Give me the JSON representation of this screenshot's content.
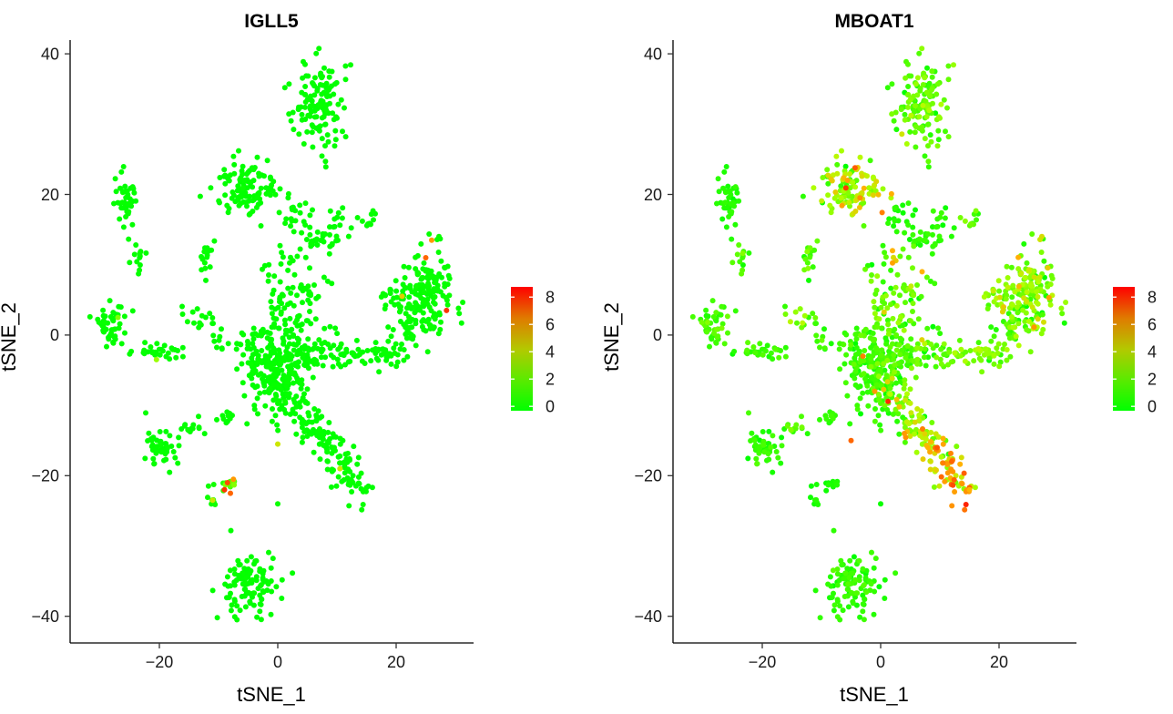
{
  "chart_data": [
    {
      "type": "scatter",
      "title": "IGLL5",
      "xlabel": "tSNE_1",
      "ylabel": "tSNE_2",
      "xlim": [
        -35,
        33
      ],
      "ylim": [
        -44,
        42
      ],
      "x_ticks": [
        -20,
        0,
        20
      ],
      "y_ticks": [
        -40,
        -20,
        0,
        20,
        40
      ],
      "x_tick_labels": [
        "−20",
        "0",
        "20"
      ],
      "y_tick_labels": [
        "−40",
        "−20",
        "0",
        "20",
        "40"
      ],
      "color_scale": {
        "low": "#00ff00",
        "high": "#ff0000",
        "min": 0,
        "max": 8.5
      },
      "legend": {
        "position": "right",
        "ticks": [
          8,
          6,
          4,
          2,
          0
        ]
      },
      "clusters": [
        {
          "cx": 6.5,
          "cy": 33,
          "sx": 2.2,
          "sy": 3.0,
          "n": 130,
          "expr": 0.05
        },
        {
          "cx": -5,
          "cy": 21,
          "sx": 2.8,
          "sy": 2.2,
          "n": 110,
          "expr": 0.05
        },
        {
          "cx": 3,
          "cy": 17,
          "sx": 1.3,
          "sy": 1.3,
          "n": 20,
          "expr": 0.05
        },
        {
          "cx": -25.5,
          "cy": 19,
          "sx": 1.0,
          "sy": 1.8,
          "n": 40,
          "expr": 0.05
        },
        {
          "cx": -23.5,
          "cy": 11,
          "sx": 0.8,
          "sy": 1.0,
          "n": 12,
          "expr": 0.05
        },
        {
          "cx": -28.5,
          "cy": 1.5,
          "sx": 1.4,
          "sy": 2.0,
          "n": 45,
          "expr": 0.05
        },
        {
          "cx": -19.5,
          "cy": -2.5,
          "sx": 2.0,
          "sy": 0.6,
          "n": 30,
          "expr": 0.05
        },
        {
          "cx": -12,
          "cy": 11,
          "sx": 1.0,
          "sy": 1.0,
          "n": 15,
          "expr": 0.05
        },
        {
          "cx": -13,
          "cy": 2.5,
          "sx": 1.3,
          "sy": 1.3,
          "n": 15,
          "expr": 0.05
        },
        {
          "cx": -10,
          "cy": -0.5,
          "sx": 0.7,
          "sy": 1.5,
          "n": 8,
          "expr": 0.05
        },
        {
          "cx": -20,
          "cy": -16,
          "sx": 1.5,
          "sy": 1.4,
          "n": 45,
          "expr": 0.05
        },
        {
          "cx": -14,
          "cy": -13,
          "sx": 1.0,
          "sy": 0.6,
          "n": 12,
          "expr": 0.05
        },
        {
          "cx": -9,
          "cy": -11.5,
          "sx": 1.2,
          "sy": 0.6,
          "n": 10,
          "expr": 0.05
        },
        {
          "cx": -11,
          "cy": -23.5,
          "sx": 0.5,
          "sy": 1.2,
          "n": 8,
          "expr": 0.3
        },
        {
          "cx": -8,
          "cy": -21.5,
          "sx": 0.6,
          "sy": 0.8,
          "n": 14,
          "expr": 1.5
        },
        {
          "cx": -5,
          "cy": -35.5,
          "sx": 2.3,
          "sy": 2.3,
          "n": 110,
          "expr": 0.05
        },
        {
          "cx": -0.5,
          "cy": -5,
          "sx": 2.5,
          "sy": 3.2,
          "n": 190,
          "expr": 0.05
        },
        {
          "cx": 4.5,
          "cy": 6,
          "sx": 2.0,
          "sy": 1.5,
          "n": 30,
          "expr": 0.05
        },
        {
          "cx": 4.0,
          "cy": 2.0,
          "sx": 2.0,
          "sy": 2.0,
          "n": 25,
          "expr": 0.05
        },
        {
          "cx": 8,
          "cy": 13.5,
          "sx": 2.0,
          "sy": 1.0,
          "n": 30,
          "expr": 0.05
        },
        {
          "cx": 2.5,
          "cy": 11.5,
          "sx": 1.5,
          "sy": 1.0,
          "n": 12,
          "expr": 0.05
        },
        {
          "cx": 10.5,
          "cy": 16.5,
          "sx": 0.8,
          "sy": 1.0,
          "n": 8,
          "expr": 0.05
        },
        {
          "cx": 15,
          "cy": 16.5,
          "sx": 0.8,
          "sy": 0.8,
          "n": 10,
          "expr": 0.05
        },
        {
          "cx": 25,
          "cy": 6,
          "sx": 2.2,
          "sy": 3.2,
          "n": 120,
          "expr": 0.1
        },
        {
          "cx": 19.5,
          "cy": 5.5,
          "sx": 1.5,
          "sy": 1.3,
          "n": 25,
          "expr": 0.05
        }
      ],
      "arms": [
        {
          "x1": 0,
          "y1": -3,
          "x2": 21,
          "y2": -2.5,
          "n": 100,
          "w": 1.0,
          "expr": 0.05
        },
        {
          "x1": 21,
          "y1": -2,
          "x2": 26,
          "y2": 9,
          "n": 60,
          "w": 1.3,
          "expr": 0.1
        },
        {
          "x1": 1,
          "y1": -8,
          "x2": 15,
          "y2": -23,
          "n": 160,
          "w": 1.4,
          "expr": 0.05
        },
        {
          "x1": -6,
          "y1": -1,
          "x2": 7,
          "y2": -5,
          "n": 45,
          "w": 1.5,
          "expr": 0.05
        },
        {
          "x1": -2,
          "y1": 10,
          "x2": 1,
          "y2": 0,
          "n": 20,
          "w": 0.8,
          "expr": 0.05
        },
        {
          "x1": 9,
          "y1": 2,
          "x2": 11,
          "y2": -3,
          "n": 10,
          "w": 0.6,
          "expr": 0.05
        }
      ],
      "highlights": [
        {
          "x": 28.5,
          "y": 3.5,
          "v": 7.5
        },
        {
          "x": 26,
          "y": 13.5,
          "v": 5.5
        },
        {
          "x": 25,
          "y": 11,
          "v": 6.5
        },
        {
          "x": 21,
          "y": 5.5,
          "v": 4.5
        },
        {
          "x": -8.5,
          "y": -21,
          "v": 7.0
        },
        {
          "x": -8,
          "y": -22.5,
          "v": 6.5
        },
        {
          "x": -7.5,
          "y": -20.5,
          "v": 5.5
        },
        {
          "x": -9,
          "y": -22,
          "v": 7.5
        },
        {
          "x": -11,
          "y": -23.5,
          "v": 4.0
        },
        {
          "x": 0,
          "y": -15.5,
          "v": 4.0
        },
        {
          "x": 10.5,
          "y": -19,
          "v": 4.0
        },
        {
          "x": -20.5,
          "y": -3.5,
          "v": 3.0
        },
        {
          "x": -27,
          "y": 2.5,
          "v": 2.5
        },
        {
          "x": 0,
          "y": -24,
          "v": 0.2
        }
      ]
    },
    {
      "type": "scatter",
      "title": "MBOAT1",
      "xlabel": "tSNE_1",
      "ylabel": "tSNE_2",
      "xlim": [
        -35,
        33
      ],
      "ylim": [
        -44,
        42
      ],
      "x_ticks": [
        -20,
        0,
        20
      ],
      "y_ticks": [
        -40,
        -20,
        0,
        20,
        40
      ],
      "x_tick_labels": [
        "−20",
        "0",
        "20"
      ],
      "y_tick_labels": [
        "−40",
        "−20",
        "0",
        "20",
        "40"
      ],
      "color_scale": {
        "low": "#00ff00",
        "high": "#ff0000",
        "min": 0,
        "max": 8.5
      },
      "legend": {
        "position": "right",
        "ticks": [
          8,
          6,
          4,
          2,
          0
        ]
      },
      "clusters": [
        {
          "cx": 6.5,
          "cy": 33,
          "sx": 2.2,
          "sy": 3.0,
          "n": 130,
          "expr": 1.8
        },
        {
          "cx": -5,
          "cy": 21,
          "sx": 2.8,
          "sy": 2.2,
          "n": 110,
          "expr": 3.2
        },
        {
          "cx": 3,
          "cy": 17,
          "sx": 1.3,
          "sy": 1.3,
          "n": 20,
          "expr": 0.6
        },
        {
          "cx": -25.5,
          "cy": 19,
          "sx": 1.0,
          "sy": 1.8,
          "n": 40,
          "expr": 0.6
        },
        {
          "cx": -23.5,
          "cy": 11,
          "sx": 0.8,
          "sy": 1.0,
          "n": 12,
          "expr": 1.2
        },
        {
          "cx": -28.5,
          "cy": 1.5,
          "sx": 1.4,
          "sy": 2.0,
          "n": 45,
          "expr": 1.4
        },
        {
          "cx": -19.5,
          "cy": -2.5,
          "sx": 2.0,
          "sy": 0.6,
          "n": 30,
          "expr": 1.0
        },
        {
          "cx": -12,
          "cy": 11,
          "sx": 1.0,
          "sy": 1.0,
          "n": 15,
          "expr": 1.5
        },
        {
          "cx": -13,
          "cy": 2.5,
          "sx": 1.3,
          "sy": 1.3,
          "n": 15,
          "expr": 1.8
        },
        {
          "cx": -10,
          "cy": -0.5,
          "sx": 0.7,
          "sy": 1.5,
          "n": 8,
          "expr": 1.2
        },
        {
          "cx": -20,
          "cy": -16,
          "sx": 1.5,
          "sy": 1.4,
          "n": 45,
          "expr": 0.9
        },
        {
          "cx": -14,
          "cy": -13,
          "sx": 1.0,
          "sy": 0.6,
          "n": 12,
          "expr": 1.5
        },
        {
          "cx": -9,
          "cy": -11.5,
          "sx": 1.2,
          "sy": 0.6,
          "n": 10,
          "expr": 0.8
        },
        {
          "cx": -11,
          "cy": -23.5,
          "sx": 0.5,
          "sy": 1.2,
          "n": 8,
          "expr": 0.4
        },
        {
          "cx": -8,
          "cy": -21.5,
          "sx": 0.6,
          "sy": 0.8,
          "n": 14,
          "expr": 0.4
        },
        {
          "cx": -5,
          "cy": -35.5,
          "sx": 2.3,
          "sy": 2.3,
          "n": 110,
          "expr": 0.9
        },
        {
          "cx": -0.5,
          "cy": -5,
          "sx": 2.5,
          "sy": 3.2,
          "n": 190,
          "expr": 1.0
        },
        {
          "cx": 4.5,
          "cy": 6,
          "sx": 2.0,
          "sy": 1.5,
          "n": 30,
          "expr": 1.8
        },
        {
          "cx": 4.0,
          "cy": 2.0,
          "sx": 2.0,
          "sy": 2.0,
          "n": 25,
          "expr": 1.8
        },
        {
          "cx": 8,
          "cy": 13.5,
          "sx": 2.0,
          "sy": 1.0,
          "n": 30,
          "expr": 0.8
        },
        {
          "cx": 2.5,
          "cy": 11.5,
          "sx": 1.5,
          "sy": 1.0,
          "n": 12,
          "expr": 2.5
        },
        {
          "cx": 10.5,
          "cy": 16.5,
          "sx": 0.8,
          "sy": 1.0,
          "n": 8,
          "expr": 1.0
        },
        {
          "cx": 15,
          "cy": 16.5,
          "sx": 0.8,
          "sy": 0.8,
          "n": 10,
          "expr": 1.5
        },
        {
          "cx": 25,
          "cy": 6,
          "sx": 2.2,
          "sy": 3.2,
          "n": 120,
          "expr": 2.6
        },
        {
          "cx": 19.5,
          "cy": 5.5,
          "sx": 1.5,
          "sy": 1.3,
          "n": 25,
          "expr": 2.6
        }
      ],
      "arms": [
        {
          "x1": 0,
          "y1": -3,
          "x2": 21,
          "y2": -2.5,
          "n": 100,
          "w": 1.0,
          "expr": 1.8
        },
        {
          "x1": 21,
          "y1": -2,
          "x2": 26,
          "y2": 9,
          "n": 60,
          "w": 1.3,
          "expr": 2.2
        },
        {
          "x1": 1,
          "y1": -8,
          "x2": 15,
          "y2": -23,
          "n": 160,
          "w": 1.4,
          "expr": 3.6
        },
        {
          "x1": -6,
          "y1": -1,
          "x2": 7,
          "y2": -5,
          "n": 45,
          "w": 1.5,
          "expr": 1.5
        },
        {
          "x1": -2,
          "y1": 10,
          "x2": 1,
          "y2": 0,
          "n": 20,
          "w": 0.8,
          "expr": 2.0
        },
        {
          "x1": 9,
          "y1": 2,
          "x2": 11,
          "y2": -3,
          "n": 10,
          "w": 0.6,
          "expr": 1.5
        }
      ],
      "highlights": [
        {
          "x": 12,
          "y": -18,
          "v": 6.5
        },
        {
          "x": 4,
          "y": -14,
          "v": 5.5
        },
        {
          "x": 8,
          "y": -16,
          "v": 5.0
        },
        {
          "x": -5,
          "y": -15,
          "v": 6.5
        },
        {
          "x": -1,
          "y": -8,
          "v": 5.5
        },
        {
          "x": 2,
          "y": 12,
          "v": 5.0
        },
        {
          "x": -3,
          "y": -3,
          "v": 6.0
        },
        {
          "x": 7,
          "y": 9,
          "v": 5.0
        },
        {
          "x": 15,
          "y": -22,
          "v": 5.0
        },
        {
          "x": 0,
          "y": -24,
          "v": 0.2
        }
      ]
    }
  ]
}
